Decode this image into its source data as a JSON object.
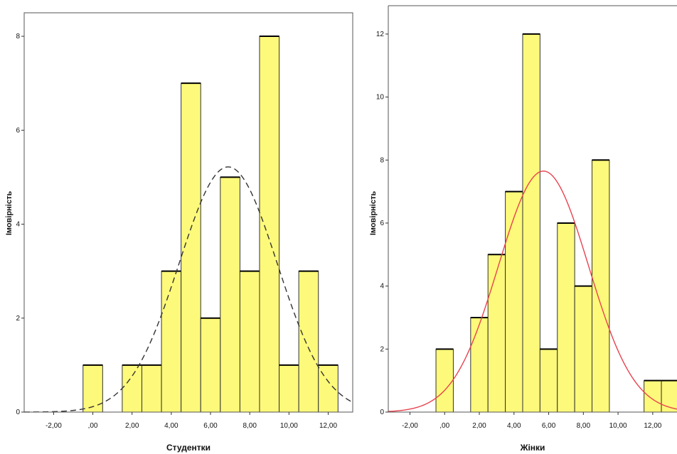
{
  "chart_data": [
    {
      "type": "bar",
      "title": "",
      "xlabel": "Студентки",
      "ylabel": "Імовірність",
      "xlim": [
        -3.5,
        13.25
      ],
      "ylim": [
        0,
        8.5
      ],
      "xticks": [
        -2,
        0,
        2,
        4,
        6,
        8,
        10,
        12
      ],
      "xtick_labels": [
        "-2,00",
        ",00",
        "2,00",
        "4,00",
        "6,00",
        "8,00",
        "10,00",
        "12,00"
      ],
      "yticks": [
        0,
        2,
        4,
        6,
        8
      ],
      "ytick_labels": [
        "0",
        "2",
        "4",
        "6",
        "8"
      ],
      "bin_width": 1,
      "bins": [
        {
          "x": 0,
          "value": 1
        },
        {
          "x": 2,
          "value": 1
        },
        {
          "x": 3,
          "value": 1
        },
        {
          "x": 4,
          "value": 3
        },
        {
          "x": 5,
          "value": 7
        },
        {
          "x": 6,
          "value": 2
        },
        {
          "x": 7,
          "value": 5
        },
        {
          "x": 8,
          "value": 3
        },
        {
          "x": 9,
          "value": 8
        },
        {
          "x": 10,
          "value": 1
        },
        {
          "x": 11,
          "value": 3
        },
        {
          "x": 12,
          "value": 1
        }
      ],
      "normal_curve": {
        "mean": 6.9,
        "peak": 5.22,
        "sd": 2.5,
        "style": "dashed",
        "color": "#333333"
      },
      "bar_color": "#fdf97a",
      "grid": false
    },
    {
      "type": "bar",
      "title": "",
      "xlabel": "Жінки",
      "ylabel": "Імовірність",
      "xlim": [
        -3.25,
        13.4
      ],
      "ylim": [
        0,
        12.9
      ],
      "xticks": [
        -2,
        0,
        2,
        4,
        6,
        8,
        10,
        12
      ],
      "xtick_labels": [
        "-2,00",
        ",00",
        "2,00",
        "4,00",
        "6,00",
        "8,00",
        "10,00",
        "12,00"
      ],
      "yticks": [
        0,
        2,
        4,
        6,
        8,
        10,
        12
      ],
      "ytick_labels": [
        "0",
        "2",
        "4",
        "6",
        "8",
        "10",
        "12"
      ],
      "bin_width": 1,
      "bins": [
        {
          "x": 0,
          "value": 2
        },
        {
          "x": 2,
          "value": 3
        },
        {
          "x": 3,
          "value": 5
        },
        {
          "x": 4,
          "value": 7
        },
        {
          "x": 5,
          "value": 12
        },
        {
          "x": 6,
          "value": 2
        },
        {
          "x": 7,
          "value": 6
        },
        {
          "x": 8,
          "value": 4
        },
        {
          "x": 9,
          "value": 8
        },
        {
          "x": 12,
          "value": 1
        },
        {
          "x": 13,
          "value": 1
        }
      ],
      "normal_curve": {
        "mean": 5.7,
        "peak": 7.65,
        "sd": 2.6,
        "style": "solid",
        "color": "#e8434f"
      },
      "bar_color": "#fdf97a",
      "grid": false
    }
  ]
}
